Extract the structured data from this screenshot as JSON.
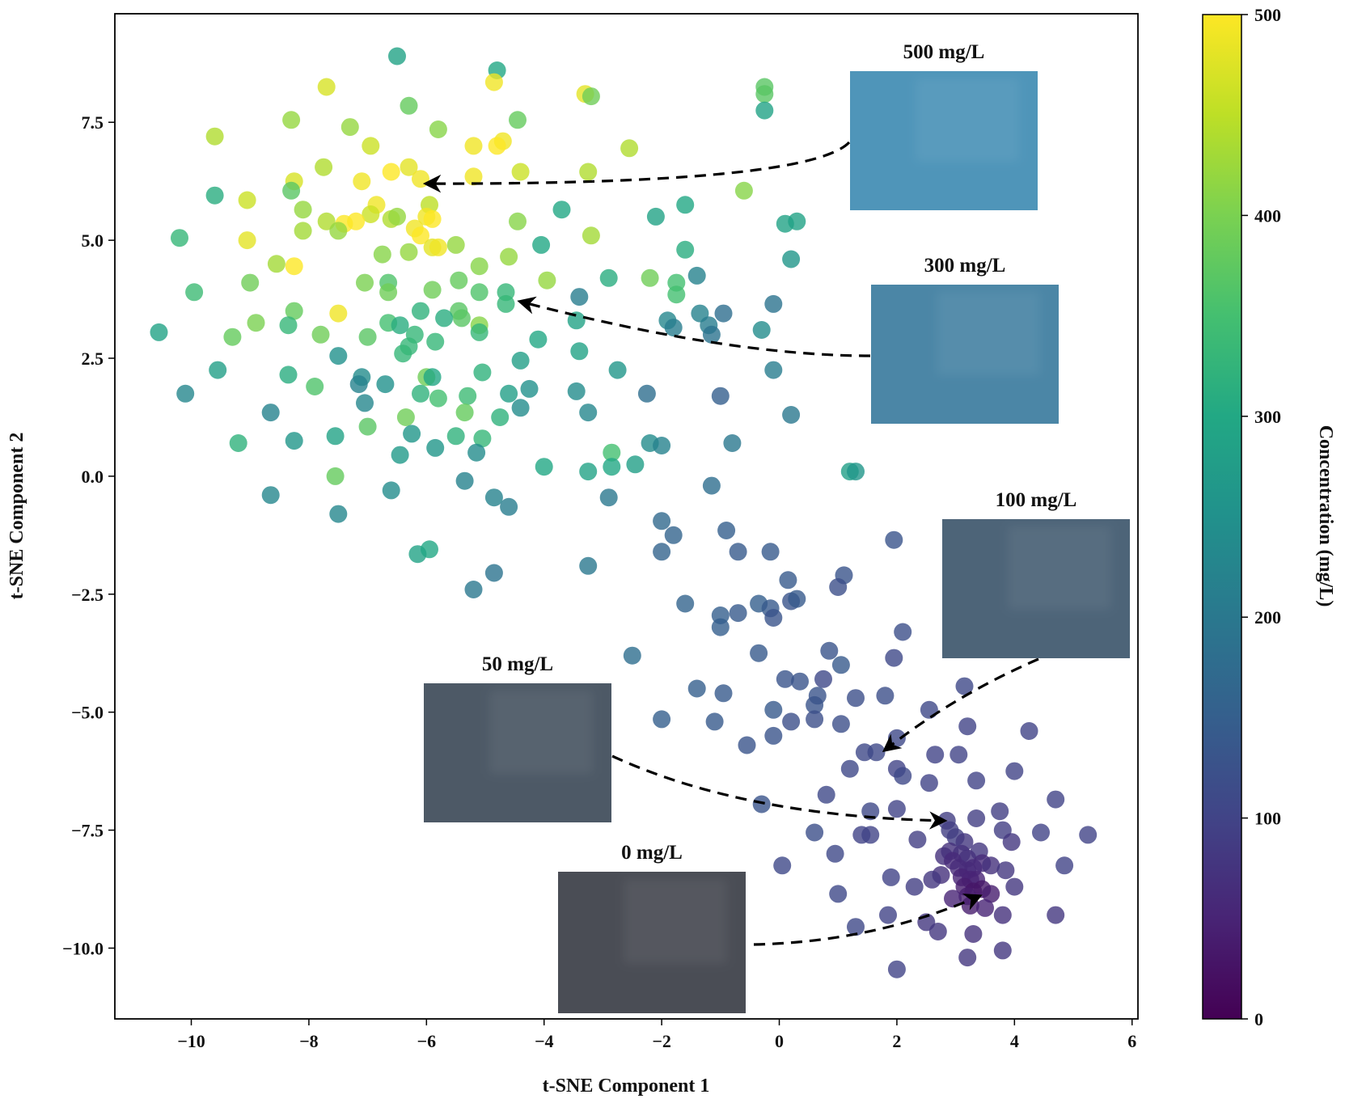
{
  "chart_data": {
    "type": "scatter",
    "title": "",
    "xlabel": "t-SNE Component 1",
    "ylabel": "t-SNE Component 2",
    "xlim": [
      -11.3,
      6.1
    ],
    "ylim": [
      -11.5,
      9.8
    ],
    "xticks": [
      -10,
      -8,
      -6,
      -4,
      -2,
      0,
      2,
      4,
      6
    ],
    "yticks": [
      -10.0,
      -7.5,
      -5.0,
      -2.5,
      0.0,
      2.5,
      5.0,
      7.5
    ],
    "grid": false,
    "colormap": "viridis",
    "colorbar": {
      "label": "Concentration (mg/L)",
      "min": 0,
      "max": 500,
      "ticks": [
        0,
        100,
        200,
        300,
        400,
        500
      ]
    },
    "annotations": [
      {
        "text": "500 mg/L",
        "concentration": 500,
        "swatch_color": "#4f95b9",
        "points_to": [
          -6.0,
          6.2
        ]
      },
      {
        "text": "300 mg/L",
        "concentration": 300,
        "swatch_color": "#4b86a6",
        "points_to": [
          -4.4,
          3.7
        ]
      },
      {
        "text": "100 mg/L",
        "concentration": 100,
        "swatch_color": "#4d6478",
        "points_to": [
          1.8,
          -5.8
        ]
      },
      {
        "text": "50 mg/L",
        "concentration": 50,
        "swatch_color": "#4d5966",
        "points_to": [
          2.8,
          -7.3
        ]
      },
      {
        "text": "0 mg/L",
        "concentration": 0,
        "swatch_color": "#4a4d55",
        "points_to": [
          3.4,
          -8.9
        ]
      }
    ],
    "points": [
      [
        -6.5,
        8.9,
        290
      ],
      [
        -4.8,
        8.6,
        300
      ],
      [
        -3.3,
        8.1,
        480
      ],
      [
        -3.2,
        8.05,
        390
      ],
      [
        -0.25,
        8.25,
        370
      ],
      [
        -0.25,
        8.1,
        370
      ],
      [
        -0.25,
        7.75,
        290
      ],
      [
        -4.85,
        8.35,
        490
      ],
      [
        -7.7,
        8.25,
        470
      ],
      [
        -6.3,
        7.85,
        380
      ],
      [
        -4.45,
        7.55,
        380
      ],
      [
        -8.3,
        7.55,
        420
      ],
      [
        -7.3,
        7.4,
        420
      ],
      [
        -5.8,
        7.35,
        410
      ],
      [
        -9.6,
        7.2,
        440
      ],
      [
        -4.7,
        7.1,
        490
      ],
      [
        -4.8,
        7.0,
        500
      ],
      [
        -5.2,
        7.0,
        490
      ],
      [
        -6.95,
        7.0,
        460
      ],
      [
        -2.55,
        6.95,
        440
      ],
      [
        -7.75,
        6.55,
        440
      ],
      [
        -6.3,
        6.55,
        480
      ],
      [
        -4.4,
        6.45,
        460
      ],
      [
        -3.25,
        6.45,
        440
      ],
      [
        -6.6,
        6.45,
        500
      ],
      [
        -5.2,
        6.35,
        490
      ],
      [
        -7.1,
        6.25,
        490
      ],
      [
        -8.25,
        6.25,
        470
      ],
      [
        -6.1,
        6.3,
        490
      ],
      [
        -9.6,
        5.95,
        310
      ],
      [
        -8.3,
        6.05,
        370
      ],
      [
        -9.05,
        5.85,
        460
      ],
      [
        -6.85,
        5.75,
        490
      ],
      [
        -5.95,
        5.75,
        450
      ],
      [
        -8.1,
        5.65,
        420
      ],
      [
        -3.7,
        5.65,
        300
      ],
      [
        -1.6,
        5.75,
        300
      ],
      [
        -2.1,
        5.5,
        290
      ],
      [
        -0.6,
        6.05,
        410
      ],
      [
        -6.95,
        5.55,
        460
      ],
      [
        -7.4,
        5.35,
        500
      ],
      [
        -7.7,
        5.4,
        440
      ],
      [
        -7.2,
        5.4,
        500
      ],
      [
        -6.6,
        5.45,
        440
      ],
      [
        -6.0,
        5.5,
        490
      ],
      [
        -5.9,
        5.45,
        500
      ],
      [
        -4.45,
        5.4,
        410
      ],
      [
        -8.1,
        5.2,
        430
      ],
      [
        -6.5,
        5.5,
        420
      ],
      [
        -6.2,
        5.25,
        490
      ],
      [
        -6.1,
        5.1,
        500
      ],
      [
        -7.5,
        5.2,
        420
      ],
      [
        -3.2,
        5.1,
        430
      ],
      [
        -10.2,
        5.05,
        330
      ],
      [
        -9.05,
        5.0,
        480
      ],
      [
        -5.9,
        4.85,
        480
      ],
      [
        -5.8,
        4.85,
        490
      ],
      [
        -5.5,
        4.9,
        420
      ],
      [
        -4.05,
        4.9,
        300
      ],
      [
        -6.75,
        4.7,
        410
      ],
      [
        -6.3,
        4.75,
        420
      ],
      [
        -4.6,
        4.65,
        420
      ],
      [
        -1.6,
        4.8,
        310
      ],
      [
        0.2,
        4.6,
        260
      ],
      [
        0.1,
        5.35,
        290
      ],
      [
        0.3,
        5.4,
        290
      ],
      [
        -8.55,
        4.5,
        430
      ],
      [
        -8.25,
        4.45,
        500
      ],
      [
        -6.65,
        4.1,
        360
      ],
      [
        -5.1,
        4.45,
        410
      ],
      [
        -7.05,
        4.1,
        400
      ],
      [
        -9.95,
        3.9,
        340
      ],
      [
        -9.0,
        4.1,
        390
      ],
      [
        -5.45,
        4.15,
        380
      ],
      [
        -3.95,
        4.15,
        420
      ],
      [
        -2.9,
        4.2,
        310
      ],
      [
        -2.2,
        4.2,
        390
      ],
      [
        -1.4,
        4.25,
        220
      ],
      [
        -6.65,
        3.9,
        390
      ],
      [
        -5.9,
        3.95,
        390
      ],
      [
        -5.1,
        3.9,
        360
      ],
      [
        -4.65,
        3.9,
        330
      ],
      [
        -4.65,
        3.65,
        330
      ],
      [
        -3.4,
        3.8,
        210
      ],
      [
        -1.75,
        4.1,
        350
      ],
      [
        -1.75,
        3.85,
        350
      ],
      [
        -0.95,
        3.45,
        180
      ],
      [
        -1.35,
        3.45,
        220
      ],
      [
        -1.9,
        3.3,
        230
      ],
      [
        -0.1,
        3.65,
        190
      ],
      [
        -8.25,
        3.5,
        380
      ],
      [
        -7.5,
        3.45,
        490
      ],
      [
        -6.1,
        3.5,
        320
      ],
      [
        -5.45,
        3.5,
        370
      ],
      [
        -5.4,
        3.35,
        370
      ],
      [
        -3.45,
        3.3,
        290
      ],
      [
        -5.7,
        3.35,
        310
      ],
      [
        -8.35,
        3.2,
        330
      ],
      [
        -8.9,
        3.25,
        400
      ],
      [
        -6.65,
        3.25,
        350
      ],
      [
        -6.45,
        3.2,
        310
      ],
      [
        -5.1,
        3.2,
        410
      ],
      [
        -1.8,
        3.15,
        210
      ],
      [
        -1.2,
        3.2,
        210
      ],
      [
        -1.15,
        3.0,
        190
      ],
      [
        -0.3,
        3.1,
        240
      ],
      [
        -10.55,
        3.05,
        290
      ],
      [
        -9.3,
        2.95,
        380
      ],
      [
        -7.8,
        3.0,
        390
      ],
      [
        -7.0,
        2.95,
        370
      ],
      [
        -6.2,
        3.0,
        330
      ],
      [
        -5.85,
        2.85,
        330
      ],
      [
        -5.1,
        3.05,
        330
      ],
      [
        -6.3,
        2.75,
        330
      ],
      [
        -6.4,
        2.6,
        330
      ],
      [
        -4.1,
        2.9,
        300
      ],
      [
        -3.4,
        2.65,
        290
      ],
      [
        -7.5,
        2.55,
        250
      ],
      [
        -4.4,
        2.45,
        280
      ],
      [
        -9.55,
        2.25,
        280
      ],
      [
        -8.35,
        2.15,
        310
      ],
      [
        -7.1,
        2.1,
        240
      ],
      [
        -6.0,
        2.1,
        390
      ],
      [
        -5.9,
        2.1,
        300
      ],
      [
        -5.05,
        2.2,
        320
      ],
      [
        -2.75,
        2.25,
        260
      ],
      [
        -0.1,
        2.25,
        210
      ],
      [
        -10.1,
        1.75,
        230
      ],
      [
        -7.9,
        1.9,
        360
      ],
      [
        -7.15,
        1.95,
        220
      ],
      [
        -6.7,
        1.95,
        250
      ],
      [
        -6.1,
        1.75,
        320
      ],
      [
        -5.8,
        1.65,
        350
      ],
      [
        -5.3,
        1.7,
        340
      ],
      [
        -4.6,
        1.75,
        280
      ],
      [
        -4.25,
        1.85,
        250
      ],
      [
        -3.45,
        1.8,
        240
      ],
      [
        -2.25,
        1.75,
        180
      ],
      [
        -1.0,
        1.7,
        150
      ],
      [
        -7.05,
        1.55,
        230
      ],
      [
        -6.35,
        1.25,
        390
      ],
      [
        -5.35,
        1.35,
        380
      ],
      [
        -4.75,
        1.25,
        320
      ],
      [
        -4.4,
        1.45,
        240
      ],
      [
        -3.25,
        1.35,
        230
      ],
      [
        0.2,
        1.3,
        200
      ],
      [
        -8.65,
        1.35,
        220
      ],
      [
        -7.0,
        1.05,
        370
      ],
      [
        -9.2,
        0.7,
        320
      ],
      [
        -8.25,
        0.75,
        260
      ],
      [
        -7.55,
        0.85,
        290
      ],
      [
        -6.25,
        0.9,
        260
      ],
      [
        -5.5,
        0.85,
        320
      ],
      [
        -5.05,
        0.8,
        330
      ],
      [
        -2.85,
        0.5,
        350
      ],
      [
        -2.2,
        0.7,
        240
      ],
      [
        -2.0,
        0.65,
        220
      ],
      [
        -0.8,
        0.7,
        200
      ],
      [
        -5.85,
        0.6,
        260
      ],
      [
        -5.15,
        0.5,
        240
      ],
      [
        -6.45,
        0.45,
        270
      ],
      [
        -4.0,
        0.2,
        300
      ],
      [
        -3.25,
        0.1,
        290
      ],
      [
        -2.85,
        0.2,
        300
      ],
      [
        -2.45,
        0.25,
        280
      ],
      [
        1.2,
        0.1,
        280
      ],
      [
        1.3,
        0.1,
        260
      ],
      [
        -7.55,
        0.0,
        380
      ],
      [
        -5.35,
        -0.1,
        220
      ],
      [
        -8.65,
        -0.4,
        230
      ],
      [
        -6.6,
        -0.3,
        240
      ],
      [
        -4.85,
        -0.45,
        220
      ],
      [
        -4.6,
        -0.65,
        210
      ],
      [
        -2.9,
        -0.45,
        200
      ],
      [
        -1.15,
        -0.2,
        180
      ],
      [
        -7.5,
        -0.8,
        230
      ],
      [
        -2.0,
        -0.95,
        170
      ],
      [
        -1.8,
        -1.25,
        160
      ],
      [
        -0.9,
        -1.15,
        150
      ],
      [
        1.95,
        -1.35,
        130
      ],
      [
        -6.15,
        -1.65,
        290
      ],
      [
        -5.95,
        -1.55,
        300
      ],
      [
        -2.0,
        -1.6,
        160
      ],
      [
        -0.7,
        -1.6,
        140
      ],
      [
        -0.15,
        -1.6,
        140
      ],
      [
        -3.25,
        -1.9,
        200
      ],
      [
        -4.85,
        -2.05,
        190
      ],
      [
        -5.2,
        -2.4,
        200
      ],
      [
        0.15,
        -2.2,
        140
      ],
      [
        1.1,
        -2.1,
        130
      ],
      [
        1.0,
        -2.35,
        120
      ],
      [
        -1.6,
        -2.7,
        160
      ],
      [
        -1.0,
        -2.95,
        150
      ],
      [
        -0.7,
        -2.9,
        140
      ],
      [
        -0.35,
        -2.7,
        150
      ],
      [
        -0.15,
        -2.8,
        140
      ],
      [
        -0.1,
        -3.0,
        130
      ],
      [
        0.2,
        -2.65,
        130
      ],
      [
        0.3,
        -2.6,
        140
      ],
      [
        -1.0,
        -3.2,
        150
      ],
      [
        2.1,
        -3.3,
        120
      ],
      [
        -2.5,
        -3.8,
        180
      ],
      [
        -0.35,
        -3.75,
        140
      ],
      [
        0.85,
        -3.7,
        130
      ],
      [
        1.05,
        -4.0,
        140
      ],
      [
        1.95,
        -3.85,
        110
      ],
      [
        -1.4,
        -4.5,
        150
      ],
      [
        0.75,
        -4.3,
        110
      ],
      [
        0.1,
        -4.3,
        130
      ],
      [
        0.35,
        -4.35,
        130
      ],
      [
        0.65,
        -4.65,
        130
      ],
      [
        0.6,
        -4.85,
        130
      ],
      [
        3.15,
        -4.45,
        110
      ],
      [
        -0.95,
        -4.6,
        140
      ],
      [
        1.3,
        -4.7,
        120
      ],
      [
        1.8,
        -4.65,
        120
      ],
      [
        -0.1,
        -4.95,
        140
      ],
      [
        2.55,
        -4.95,
        110
      ],
      [
        -2.0,
        -5.15,
        150
      ],
      [
        -1.1,
        -5.2,
        140
      ],
      [
        0.6,
        -5.15,
        120
      ],
      [
        0.2,
        -5.2,
        120
      ],
      [
        1.05,
        -5.25,
        120
      ],
      [
        3.2,
        -5.3,
        100
      ],
      [
        -0.55,
        -5.7,
        130
      ],
      [
        -0.1,
        -5.5,
        130
      ],
      [
        1.45,
        -5.85,
        110
      ],
      [
        1.65,
        -5.85,
        110
      ],
      [
        2.0,
        -5.55,
        110
      ],
      [
        4.25,
        -5.4,
        100
      ],
      [
        1.2,
        -6.2,
        110
      ],
      [
        2.65,
        -5.9,
        100
      ],
      [
        2.0,
        -6.2,
        100
      ],
      [
        2.1,
        -6.35,
        110
      ],
      [
        3.05,
        -5.9,
        100
      ],
      [
        3.35,
        -6.45,
        100
      ],
      [
        4.0,
        -6.25,
        100
      ],
      [
        2.55,
        -6.5,
        100
      ],
      [
        0.8,
        -6.75,
        110
      ],
      [
        -0.3,
        -6.95,
        130
      ],
      [
        1.55,
        -7.1,
        110
      ],
      [
        2.0,
        -7.05,
        100
      ],
      [
        4.7,
        -6.85,
        100
      ],
      [
        3.75,
        -7.1,
        90
      ],
      [
        2.85,
        -7.3,
        90
      ],
      [
        3.35,
        -7.25,
        90
      ],
      [
        0.6,
        -7.55,
        120
      ],
      [
        1.4,
        -7.6,
        100
      ],
      [
        1.55,
        -7.6,
        100
      ],
      [
        2.9,
        -7.5,
        90
      ],
      [
        3.0,
        -7.65,
        90
      ],
      [
        3.8,
        -7.5,
        90
      ],
      [
        4.45,
        -7.55,
        100
      ],
      [
        5.25,
        -7.6,
        100
      ],
      [
        2.35,
        -7.7,
        90
      ],
      [
        3.15,
        -7.75,
        80
      ],
      [
        3.4,
        -7.95,
        80
      ],
      [
        3.95,
        -7.75,
        80
      ],
      [
        2.8,
        -8.05,
        70
      ],
      [
        2.9,
        -7.95,
        70
      ],
      [
        3.1,
        -8.0,
        70
      ],
      [
        3.2,
        -8.1,
        70
      ],
      [
        2.95,
        -8.15,
        60
      ],
      [
        3.05,
        -8.3,
        60
      ],
      [
        3.2,
        -8.35,
        60
      ],
      [
        3.3,
        -8.3,
        60
      ],
      [
        3.45,
        -8.2,
        60
      ],
      [
        3.6,
        -8.25,
        70
      ],
      [
        3.85,
        -8.35,
        80
      ],
      [
        4.85,
        -8.25,
        100
      ],
      [
        0.95,
        -8.0,
        110
      ],
      [
        2.75,
        -8.45,
        70
      ],
      [
        3.1,
        -8.5,
        50
      ],
      [
        3.25,
        -8.55,
        50
      ],
      [
        3.35,
        -8.55,
        50
      ],
      [
        3.15,
        -8.7,
        40
      ],
      [
        3.3,
        -8.8,
        30
      ],
      [
        3.45,
        -8.75,
        30
      ],
      [
        3.6,
        -8.85,
        40
      ],
      [
        3.2,
        -8.9,
        40
      ],
      [
        2.3,
        -8.7,
        90
      ],
      [
        2.6,
        -8.55,
        80
      ],
      [
        4.0,
        -8.7,
        80
      ],
      [
        0.05,
        -8.25,
        110
      ],
      [
        1.0,
        -8.85,
        110
      ],
      [
        1.9,
        -8.5,
        100
      ],
      [
        2.95,
        -8.95,
        50
      ],
      [
        3.25,
        -9.1,
        40
      ],
      [
        3.5,
        -9.15,
        50
      ],
      [
        3.8,
        -9.3,
        70
      ],
      [
        4.7,
        -9.3,
        80
      ],
      [
        1.85,
        -9.3,
        100
      ],
      [
        2.5,
        -9.45,
        80
      ],
      [
        1.3,
        -9.55,
        110
      ],
      [
        2.7,
        -9.65,
        80
      ],
      [
        3.3,
        -9.7,
        70
      ],
      [
        3.8,
        -10.05,
        80
      ],
      [
        3.2,
        -10.2,
        80
      ],
      [
        2.0,
        -10.45,
        100
      ]
    ]
  }
}
